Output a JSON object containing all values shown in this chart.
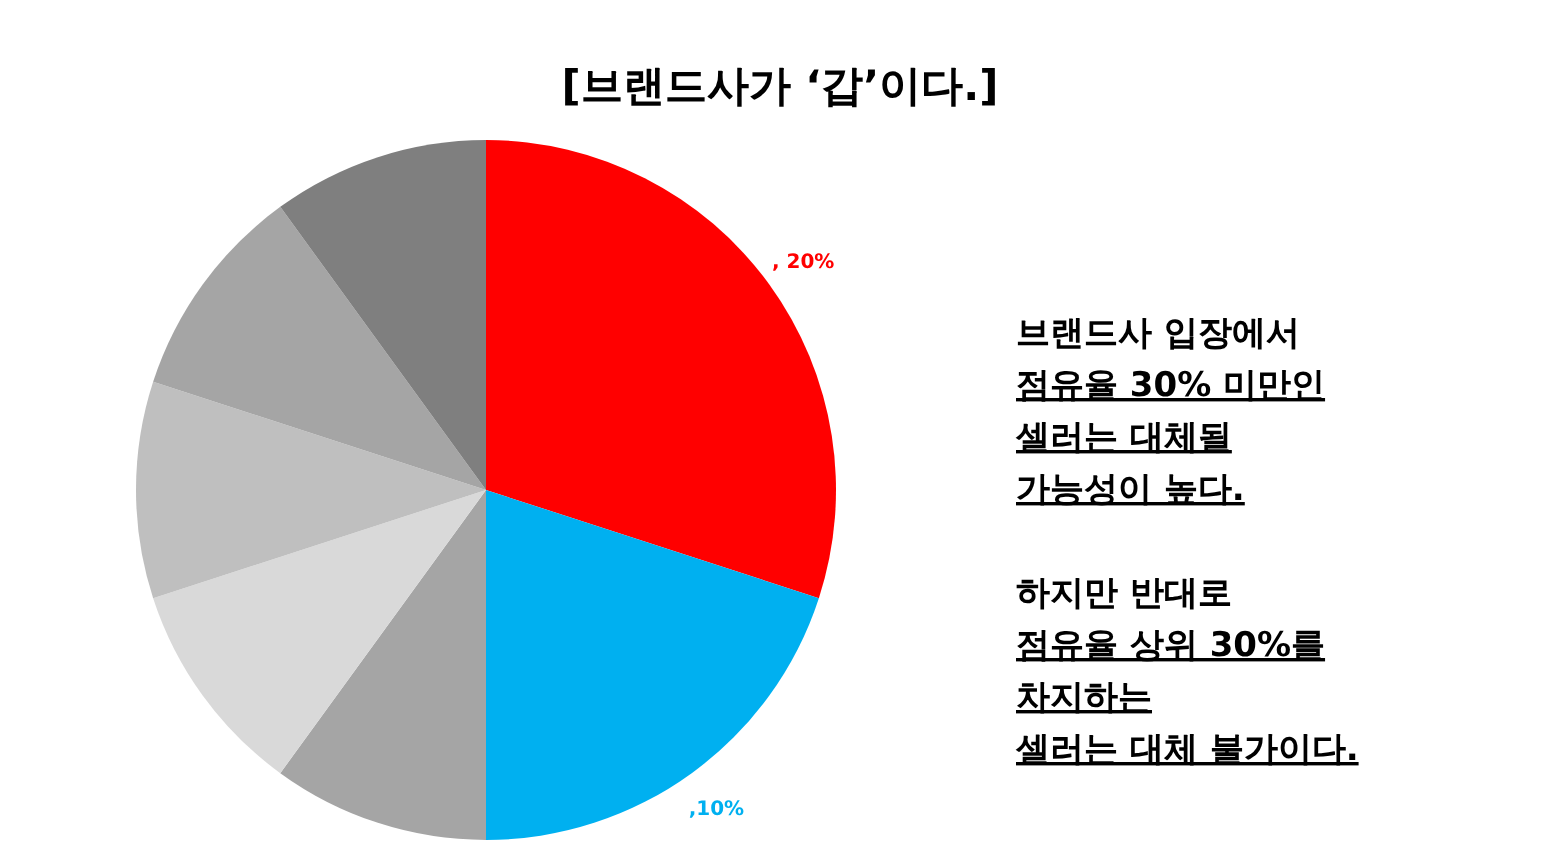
{
  "chart_data": {
    "type": "pie",
    "title": "[브랜드사가 ‘갑’이다.]",
    "categories": [
      null,
      null,
      null,
      null,
      null,
      null,
      null
    ],
    "values": [
      30,
      20,
      10,
      10,
      10,
      10,
      10
    ],
    "colors": [
      "#ff0000",
      "#00b0f0",
      "#a5a5a5",
      "#d9d9d9",
      "#bfbfbf",
      "#a5a5a5",
      "#7f7f7f"
    ],
    "annotations": [
      ", 20%",
      ",10%",
      "브랜드사 입장에서\n점유율 30% 미만인\n셀러는 대체될\n가능성이 높다.",
      "하지만 반대로\n점유율 상위 30%를\n차지하는\n셀러는 대체 불가이다."
    ]
  }
}
